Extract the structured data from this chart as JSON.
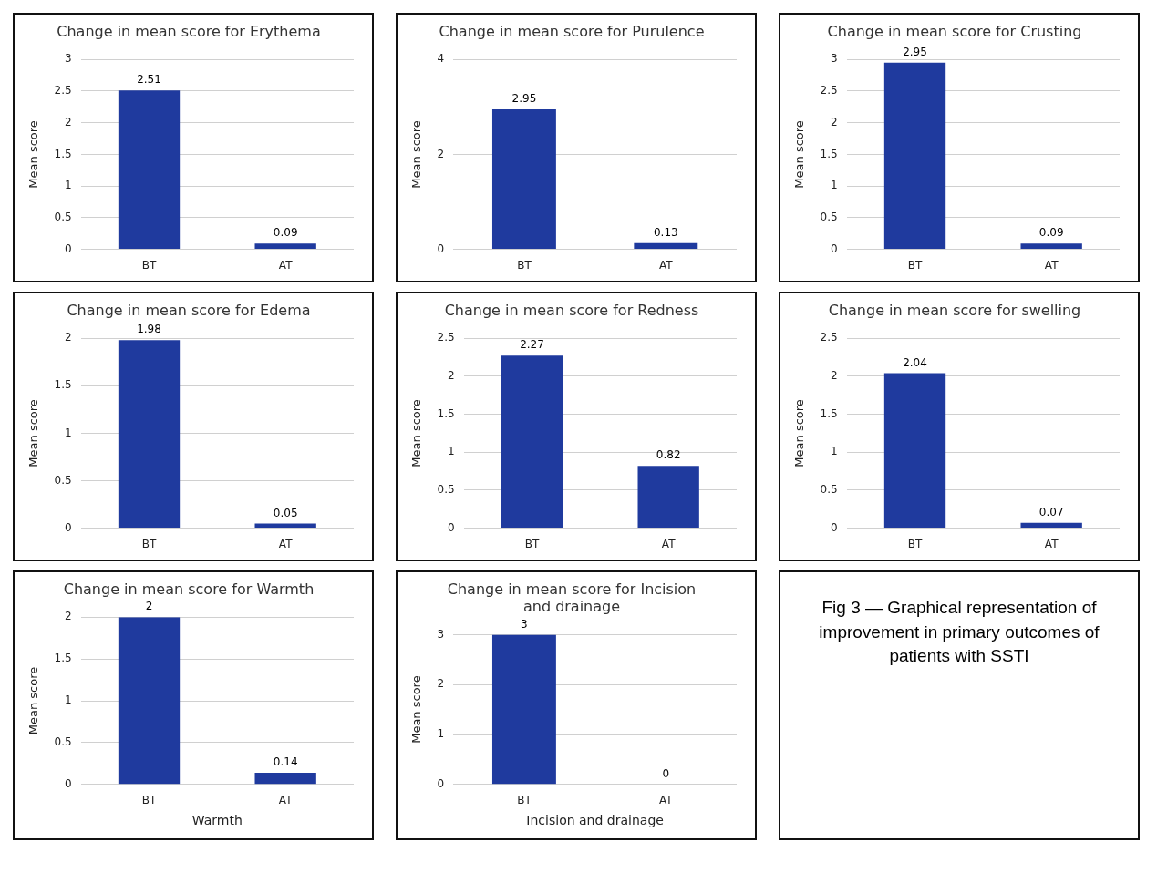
{
  "chart_data": [
    {
      "type": "bar",
      "title": "Change in mean score for Erythema",
      "ylabel": "Mean score",
      "categories": [
        "BT",
        "AT"
      ],
      "values": [
        2.51,
        0.09
      ],
      "color": "#1f3a9e",
      "ylim": [
        0,
        3
      ],
      "yticks": [
        0,
        0.5,
        1,
        1.5,
        2,
        2.5,
        3
      ],
      "grid": "y",
      "data_labels": true
    },
    {
      "type": "bar",
      "title": "Change in mean score for Purulence",
      "ylabel": "Mean score",
      "categories": [
        "BT",
        "AT"
      ],
      "values": [
        2.95,
        0.13
      ],
      "color": "#1f3a9e",
      "ylim": [
        0,
        4
      ],
      "yticks": [
        0,
        2,
        4
      ],
      "grid": "y",
      "data_labels": true
    },
    {
      "type": "bar",
      "title": "Change in mean score for Crusting",
      "ylabel": "Mean score",
      "categories": [
        "BT",
        "AT"
      ],
      "values": [
        2.95,
        0.09
      ],
      "color": "#1f3a9e",
      "ylim": [
        0,
        3
      ],
      "yticks": [
        0,
        0.5,
        1,
        1.5,
        2,
        2.5,
        3
      ],
      "grid": "y",
      "data_labels": true
    },
    {
      "type": "bar",
      "title": "Change in mean score for Edema",
      "ylabel": "Mean score",
      "categories": [
        "BT",
        "AT"
      ],
      "values": [
        1.98,
        0.05
      ],
      "color": "#1f3a9e",
      "ylim": [
        0,
        2
      ],
      "yticks": [
        0,
        0.5,
        1,
        1.5,
        2
      ],
      "grid": "y",
      "data_labels": true
    },
    {
      "type": "bar",
      "title": "Change in mean score for Redness",
      "ylabel": "Mean score",
      "categories": [
        "BT",
        "AT"
      ],
      "values": [
        2.27,
        0.82
      ],
      "color": "#1f3a9e",
      "ylim": [
        0,
        2.5
      ],
      "yticks": [
        0,
        0.5,
        1,
        1.5,
        2,
        2.5
      ],
      "grid": "y",
      "data_labels": true
    },
    {
      "type": "bar",
      "title": "Change in mean score for swelling",
      "ylabel": "Mean score",
      "categories": [
        "BT",
        "AT"
      ],
      "values": [
        2.04,
        0.07
      ],
      "color": "#1f3a9e",
      "ylim": [
        0,
        2.5
      ],
      "yticks": [
        0,
        0.5,
        1,
        1.5,
        2,
        2.5
      ],
      "grid": "y",
      "data_labels": true
    },
    {
      "type": "bar",
      "title": "Change in mean score for Warmth",
      "ylabel": "Mean score",
      "xlabel": "Warmth",
      "categories": [
        "BT",
        "AT"
      ],
      "values": [
        2,
        0.14
      ],
      "color": "#1f3a9e",
      "ylim": [
        0,
        2
      ],
      "yticks": [
        0,
        0.5,
        1,
        1.5,
        2
      ],
      "grid": "y",
      "data_labels": true
    },
    {
      "type": "bar",
      "title": [
        "Change in mean score for Incision",
        "and drainage"
      ],
      "ylabel": "Mean score",
      "xlabel": "Incision and drainage",
      "categories": [
        "BT",
        "AT"
      ],
      "values": [
        3,
        0
      ],
      "color": "#1f3a9e",
      "ylim": [
        0,
        3
      ],
      "yticks": [
        0,
        1,
        2,
        3
      ],
      "grid": "y",
      "data_labels": true
    },
    {
      "type": "other",
      "annotations": [
        "Fig 3 — Graphical representation of improvement in primary outcomes of patients with SSTI"
      ]
    }
  ]
}
